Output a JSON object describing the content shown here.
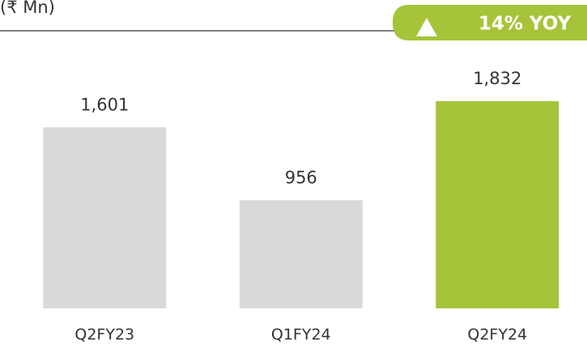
{
  "chart_data": {
    "type": "bar",
    "subtitle": "(₹ Mn)",
    "annotation": "14% YOY",
    "categories": [
      "Q2FY23",
      "Q1FY24",
      "Q2FY24"
    ],
    "values": [
      1601,
      956,
      1832
    ],
    "value_labels": [
      "1,601",
      "956",
      "1,832"
    ],
    "colors": [
      "#d9d9d9",
      "#d9d9d9",
      "#a6c43a"
    ]
  }
}
